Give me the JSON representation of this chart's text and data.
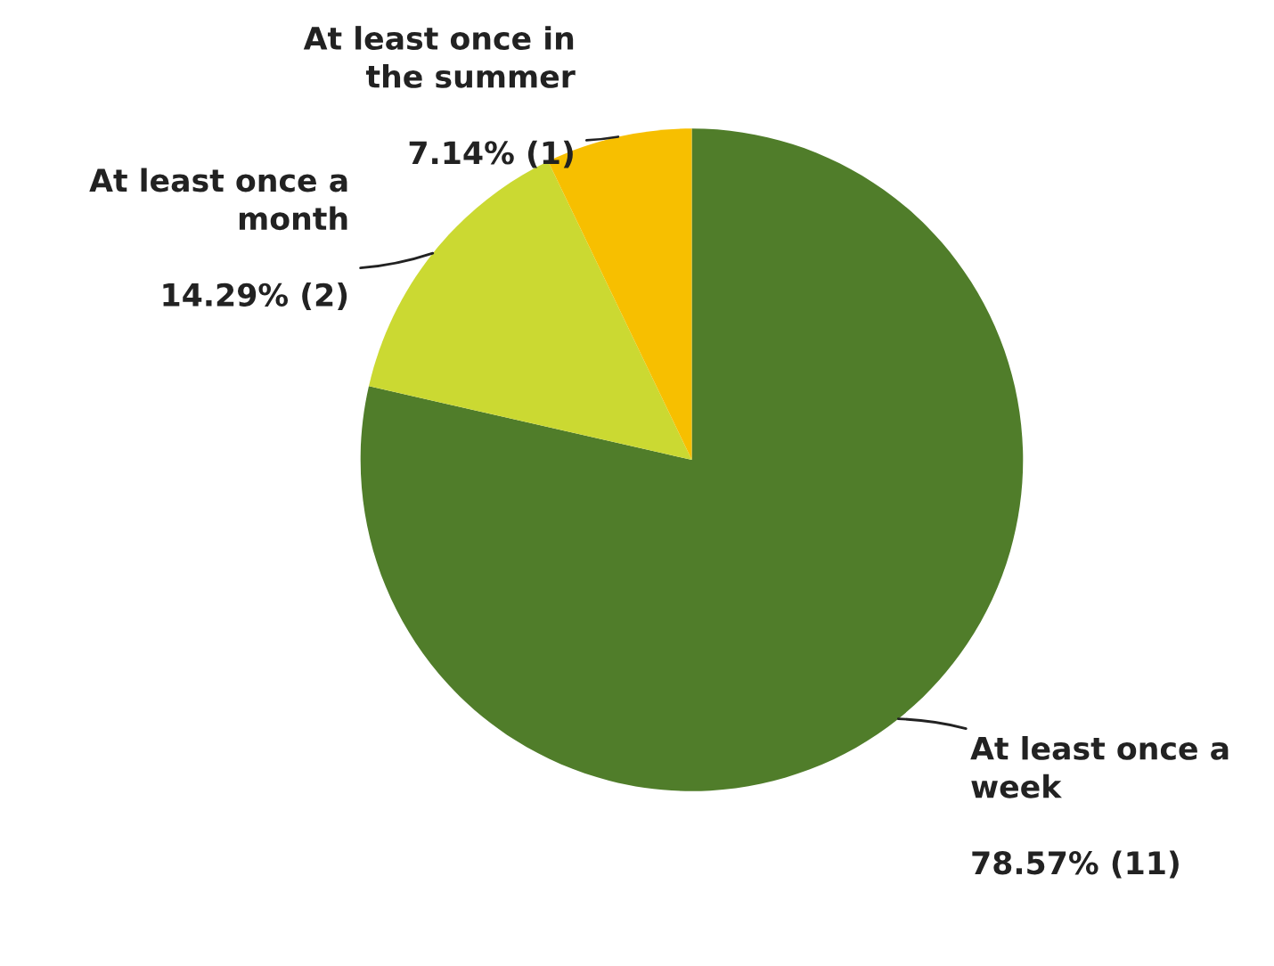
{
  "chart_data": {
    "type": "pie",
    "categories": [
      "At least once a\nweek",
      "At least once a\nmonth",
      "At least once in\nthe summer"
    ],
    "values": [
      78.57,
      14.29,
      7.14
    ],
    "value_labels": [
      "78.57% (11)",
      "14.29% (2)",
      "7.14% (1)"
    ],
    "colors": [
      "#507d2a",
      "#cbd932",
      "#f7bf00"
    ]
  }
}
